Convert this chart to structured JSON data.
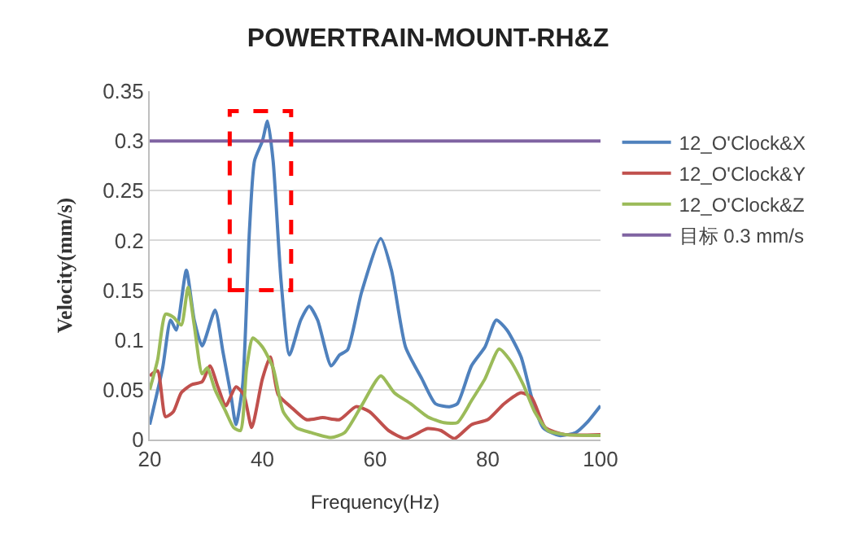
{
  "chart_data": {
    "type": "line",
    "title": "POWERTRAIN-MOUNT-RH&Z",
    "xlabel": "Frequency(Hz)",
    "ylabel": "Velocity(mm/s)",
    "xlim": [
      20,
      100
    ],
    "xticks": [
      20,
      40,
      60,
      80,
      100
    ],
    "ylim": [
      0,
      0.35
    ],
    "yticks": [
      0,
      0.05,
      0.1,
      0.15,
      0.2,
      0.25,
      0.3,
      0.35
    ],
    "grid": "y",
    "legend": "right",
    "marker": "none",
    "line_style": "solid",
    "series": [
      {
        "name": "12_O'Clock&X",
        "color": "#4f81bd",
        "x": [
          20,
          22.3,
          23.7,
          24.7,
          26.5,
          27.9,
          29.3,
          31.6,
          33,
          34.4,
          35.3,
          36.5,
          37.7,
          38.6,
          40,
          40.9,
          41.9,
          43.3,
          44.8,
          46.8,
          48.3,
          49.8,
          52.2,
          53.7,
          55.1,
          57.6,
          61,
          62.9,
          65.4,
          68.3,
          70.7,
          73.2,
          74.6,
          77.1,
          79.5,
          81.5,
          83.4,
          85.9,
          87.8,
          89.8,
          92.7,
          95.6,
          97.6,
          100
        ],
        "values": [
          0.015,
          0.072,
          0.12,
          0.11,
          0.17,
          0.12,
          0.094,
          0.13,
          0.088,
          0.045,
          0.015,
          0.055,
          0.21,
          0.28,
          0.3,
          0.32,
          0.28,
          0.16,
          0.085,
          0.12,
          0.134,
          0.12,
          0.074,
          0.085,
          0.09,
          0.148,
          0.202,
          0.17,
          0.093,
          0.061,
          0.036,
          0.033,
          0.036,
          0.074,
          0.093,
          0.12,
          0.11,
          0.083,
          0.042,
          0.012,
          0.004,
          0.007,
          0.017,
          0.034
        ]
      },
      {
        "name": "12_O'Clock&Y",
        "color": "#c0504d",
        "x": [
          20,
          21.4,
          22.8,
          24.2,
          25.6,
          27.4,
          29.3,
          30.7,
          32.1,
          33.5,
          35.3,
          36.7,
          38.1,
          40,
          41.4,
          42.8,
          45,
          47.8,
          50.7,
          53.7,
          56.6,
          59,
          62.4,
          65.4,
          69.3,
          71.7,
          74.1,
          77.1,
          80,
          82.9,
          85.9,
          87.8,
          90.2,
          93.7,
          100
        ],
        "values": [
          0.064,
          0.069,
          0.023,
          0.028,
          0.047,
          0.055,
          0.058,
          0.074,
          0.053,
          0.034,
          0.053,
          0.045,
          0.012,
          0.061,
          0.083,
          0.045,
          0.033,
          0.02,
          0.022,
          0.02,
          0.033,
          0.028,
          0.009,
          0.001,
          0.011,
          0.009,
          0.001,
          0.015,
          0.02,
          0.036,
          0.047,
          0.042,
          0.012,
          0.005,
          0.005
        ]
      },
      {
        "name": "12_O'Clock&Z",
        "color": "#9bbb59",
        "x": [
          20,
          21.4,
          22.8,
          24.2,
          25.6,
          26.8,
          27.9,
          29.3,
          30.2,
          31.6,
          33.5,
          34.9,
          36.1,
          37.2,
          38.3,
          40,
          41.9,
          43.7,
          46,
          48.6,
          52.2,
          54.6,
          57.6,
          61,
          63.4,
          66.3,
          69.3,
          72.2,
          74.6,
          77.1,
          79.5,
          82,
          83.9,
          86.3,
          88.3,
          90.7,
          93.7,
          100
        ],
        "values": [
          0.05,
          0.08,
          0.126,
          0.123,
          0.115,
          0.153,
          0.115,
          0.066,
          0.072,
          0.05,
          0.028,
          0.012,
          0.009,
          0.072,
          0.102,
          0.093,
          0.072,
          0.028,
          0.012,
          0.007,
          0.002,
          0.007,
          0.034,
          0.064,
          0.047,
          0.036,
          0.023,
          0.017,
          0.017,
          0.039,
          0.061,
          0.091,
          0.08,
          0.055,
          0.028,
          0.009,
          0.005,
          0.004
        ]
      },
      {
        "name": "目标 0.3 mm/s",
        "color": "#8064a2",
        "x": [
          20,
          100
        ],
        "values": [
          0.3,
          0.3
        ]
      }
    ]
  }
}
